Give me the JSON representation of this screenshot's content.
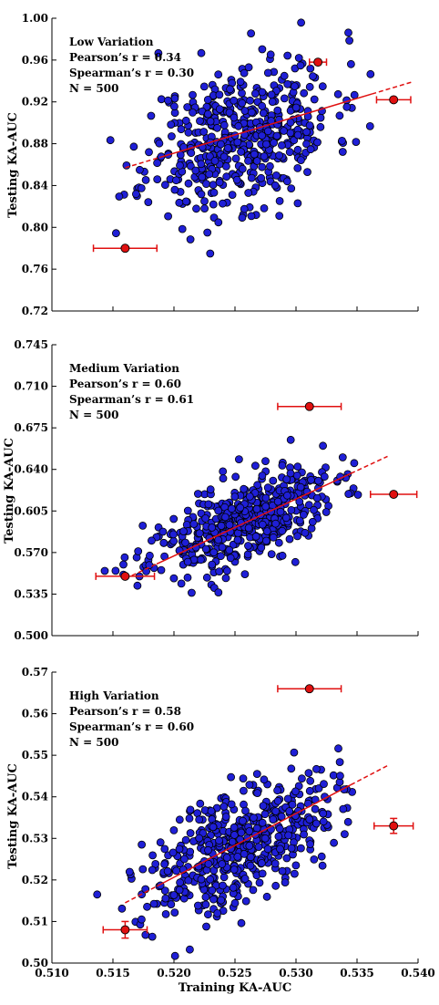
{
  "chart_data": [
    {
      "type": "scatter",
      "annotation": [
        "Low Variation",
        "Pearson’s r = 0.34",
        "Spearman’s r = 0.30",
        "N = 500"
      ],
      "ylabel": "Testing KA-AUC",
      "xlabel": "",
      "xlim": [
        0.51,
        0.54
      ],
      "ylim": [
        0.72,
        1.0
      ],
      "yticks": [
        "0.72",
        "0.76",
        "0.80",
        "0.84",
        "0.88",
        "0.92",
        "0.96",
        "1.00"
      ],
      "xticks": [],
      "cloud": {
        "n": 500,
        "x_mean": 0.5255,
        "x_sd": 0.0038,
        "y_mean": 0.888,
        "y_sd": 0.037,
        "r": 0.34,
        "seed": 11
      },
      "fit_line": {
        "x": [
          0.516,
          0.5395
        ],
        "y": [
          0.857,
          0.939
        ]
      },
      "highlight_points": [
        {
          "x": 0.516,
          "y": 0.78,
          "xerr": 0.0026,
          "yerr": 0
        },
        {
          "x": 0.5318,
          "y": 0.958,
          "xerr": 0.0007,
          "yerr": 0
        },
        {
          "x": 0.538,
          "y": 0.922,
          "xerr": 0.0014,
          "yerr": 0
        }
      ],
      "colors": {
        "points": "#1f1fd6",
        "highlight": "#e01010",
        "line": "#e01010"
      }
    },
    {
      "type": "scatter",
      "annotation": [
        "Medium Variation",
        "Pearson’s r = 0.60",
        "Spearman’s r = 0.61",
        "N = 500"
      ],
      "ylabel": "Testing KA-AUC",
      "xlabel": "",
      "xlim": [
        0.51,
        0.54
      ],
      "ylim": [
        0.5,
        0.745
      ],
      "yticks": [
        "0.500",
        "0.535",
        "0.570",
        "0.605",
        "0.640",
        "0.675",
        "0.710",
        "0.745"
      ],
      "xticks": [],
      "cloud": {
        "n": 500,
        "x_mean": 0.5255,
        "x_sd": 0.0038,
        "y_mean": 0.595,
        "y_sd": 0.022,
        "r": 0.6,
        "seed": 23
      },
      "fit_line": {
        "x": [
          0.516,
          0.5375
        ],
        "y": [
          0.548,
          0.651
        ]
      },
      "highlight_points": [
        {
          "x": 0.516,
          "y": 0.55,
          "xerr": 0.0024,
          "yerr": 0
        },
        {
          "x": 0.5311,
          "y": 0.693,
          "xerr": 0.0026,
          "yerr": 0
        },
        {
          "x": 0.538,
          "y": 0.619,
          "xerr": 0.0019,
          "yerr": 0
        }
      ],
      "colors": {
        "points": "#1f1fd6",
        "highlight": "#e01010",
        "line": "#e01010"
      }
    },
    {
      "type": "scatter",
      "annotation": [
        "High Variation",
        "Pearson’s r = 0.58",
        "Spearman’s r = 0.60",
        "N = 500"
      ],
      "ylabel": "Testing KA-AUC",
      "xlabel": "Training KA-AUC",
      "xlim": [
        0.51,
        0.54
      ],
      "ylim": [
        0.5,
        0.57
      ],
      "yticks": [
        "0.50",
        "0.51",
        "0.52",
        "0.53",
        "0.54",
        "0.55",
        "0.56",
        "0.57"
      ],
      "xticks": [
        "0.510",
        "0.515",
        "0.520",
        "0.525",
        "0.530",
        "0.535",
        "0.540"
      ],
      "cloud": {
        "n": 500,
        "x_mean": 0.5255,
        "x_sd": 0.0038,
        "y_mean": 0.529,
        "y_sd": 0.0085,
        "r": 0.58,
        "seed": 37
      },
      "fit_line": {
        "x": [
          0.516,
          0.5375
        ],
        "y": [
          0.5145,
          0.5475
        ]
      },
      "highlight_points": [
        {
          "x": 0.516,
          "y": 0.508,
          "xerr": 0.0018,
          "yerr": 0.002
        },
        {
          "x": 0.5311,
          "y": 0.566,
          "xerr": 0.0026,
          "yerr": 0
        },
        {
          "x": 0.538,
          "y": 0.533,
          "xerr": 0.0016,
          "yerr": 0.0018
        }
      ],
      "colors": {
        "points": "#1f1fd6",
        "highlight": "#e01010",
        "line": "#e01010"
      }
    }
  ]
}
